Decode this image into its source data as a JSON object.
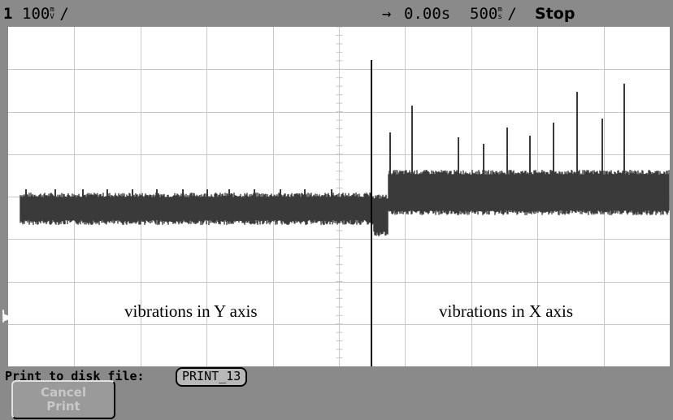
{
  "status": {
    "channel": "1",
    "volts_per_div": "100",
    "volts_unit_top": "m",
    "volts_unit_bottom": "V",
    "trigger_arrow": "→",
    "delay": "0.00s",
    "time_per_div": "500",
    "time_unit_top": "m",
    "time_unit_bottom": "s",
    "run_state": "Stop"
  },
  "annotations": {
    "left": "vibrations in Y axis",
    "right": "vibrations in X axis"
  },
  "softkeys": {
    "print_label": "Print to disk file:",
    "print_file": "PRINT_13",
    "cancel_line1": "Cancel",
    "cancel_line2": "Print"
  },
  "colors": {
    "frame": "#8a8a8a",
    "grid": "#c8c8c8",
    "trace": "#3a3a3a"
  },
  "icons": {
    "ground_marker": "ground-reference-marker-icon"
  }
}
